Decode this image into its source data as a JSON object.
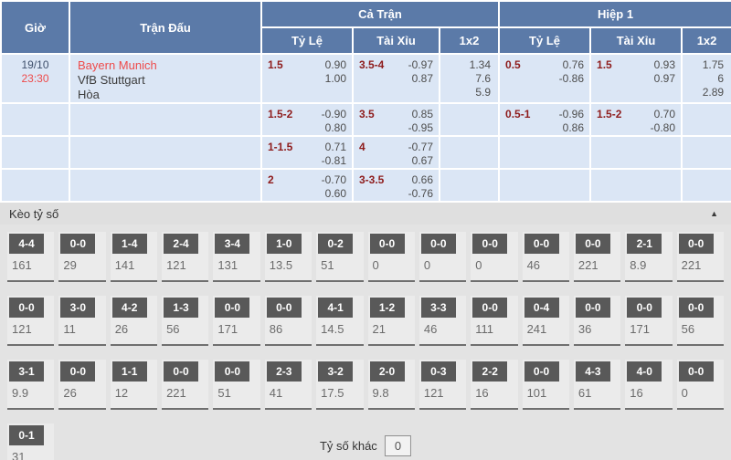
{
  "colors": {
    "header_bg": "#5b7aa8",
    "row_bg": "#dbe6f5",
    "line_maroon": "#8e1c1c",
    "accent_red": "#ee4b4b",
    "badge_bg": "#595959"
  },
  "odds_table": {
    "headers": {
      "time": "Giờ",
      "match": "Trận Đấu",
      "full_match": "Cả Trận",
      "first_half": "Hiệp 1",
      "handicap": "Tỷ Lệ",
      "over_under": "Tài Xỉu",
      "one_x_two": "1x2"
    },
    "rows": [
      {
        "date": "19/10",
        "time": "23:30",
        "home": "Bayern Munich",
        "away": "VfB Stuttgart",
        "draw": "Hòa",
        "ft_hc": {
          "line": "1.5",
          "odds": [
            "0.90",
            "1.00"
          ]
        },
        "ft_ou": {
          "line": "3.5-4",
          "odds": [
            "-0.97",
            "0.87"
          ]
        },
        "ft_1x2": [
          "1.34",
          "7.6",
          "5.9"
        ],
        "h1_hc": {
          "line": "0.5",
          "odds": [
            "0.76",
            "-0.86"
          ]
        },
        "h1_ou": {
          "line": "1.5",
          "odds": [
            "0.93",
            "0.97"
          ]
        },
        "h1_1x2": [
          "1.75",
          "6",
          "2.89"
        ]
      },
      {
        "ft_hc": {
          "line": "1.5-2",
          "odds": [
            "-0.90",
            "0.80"
          ]
        },
        "ft_ou": {
          "line": "3.5",
          "odds": [
            "0.85",
            "-0.95"
          ]
        },
        "h1_hc": {
          "line": "0.5-1",
          "odds": [
            "-0.96",
            "0.86"
          ]
        },
        "h1_ou": {
          "line": "1.5-2",
          "odds": [
            "0.70",
            "-0.80"
          ]
        }
      },
      {
        "ft_hc": {
          "line": "1-1.5",
          "odds": [
            "0.71",
            "-0.81"
          ]
        },
        "ft_ou": {
          "line": "4",
          "odds": [
            "-0.77",
            "0.67"
          ]
        }
      },
      {
        "ft_hc": {
          "line": "2",
          "odds": [
            "-0.70",
            "0.60"
          ]
        },
        "ft_ou": {
          "line": "3-3.5",
          "odds": [
            "0.66",
            "-0.76"
          ]
        }
      }
    ]
  },
  "score_section": {
    "title": "Kèo tỷ số",
    "collapse_icon": "▲",
    "other_label": "Tỷ số khác",
    "other_value": "0",
    "rows": [
      [
        {
          "score": "0-0",
          "odds": "221"
        },
        {
          "score": "2-1",
          "odds": "8.9"
        },
        {
          "score": "0-0",
          "odds": "221"
        },
        {
          "score": "0-0",
          "odds": "46"
        },
        {
          "score": "0-0",
          "odds": "0"
        },
        {
          "score": "0-0",
          "odds": "0"
        },
        {
          "score": "0-0",
          "odds": "0"
        },
        {
          "score": "0-2",
          "odds": "51"
        },
        {
          "score": "1-0",
          "odds": "13.5"
        },
        {
          "score": "3-4",
          "odds": "131"
        },
        {
          "score": "2-4",
          "odds": "121"
        },
        {
          "score": "1-4",
          "odds": "141"
        },
        {
          "score": "0-0",
          "odds": "29"
        },
        {
          "score": "4-4",
          "odds": "161"
        }
      ],
      [
        {
          "score": "0-0",
          "odds": "56"
        },
        {
          "score": "0-0",
          "odds": "171"
        },
        {
          "score": "0-0",
          "odds": "36"
        },
        {
          "score": "0-4",
          "odds": "241"
        },
        {
          "score": "0-0",
          "odds": "111"
        },
        {
          "score": "3-3",
          "odds": "46"
        },
        {
          "score": "1-2",
          "odds": "21"
        },
        {
          "score": "4-1",
          "odds": "14.5"
        },
        {
          "score": "0-0",
          "odds": "86"
        },
        {
          "score": "0-0",
          "odds": "171"
        },
        {
          "score": "1-3",
          "odds": "56"
        },
        {
          "score": "4-2",
          "odds": "26"
        },
        {
          "score": "3-0",
          "odds": "11"
        },
        {
          "score": "0-0",
          "odds": "121"
        }
      ],
      [
        {
          "score": "0-0",
          "odds": "0"
        },
        {
          "score": "4-0",
          "odds": "16"
        },
        {
          "score": "4-3",
          "odds": "61"
        },
        {
          "score": "0-0",
          "odds": "101"
        },
        {
          "score": "2-2",
          "odds": "16"
        },
        {
          "score": "0-3",
          "odds": "121"
        },
        {
          "score": "2-0",
          "odds": "9.8"
        },
        {
          "score": "3-2",
          "odds": "17.5"
        },
        {
          "score": "2-3",
          "odds": "41"
        },
        {
          "score": "0-0",
          "odds": "51"
        },
        {
          "score": "0-0",
          "odds": "221"
        },
        {
          "score": "1-1",
          "odds": "12"
        },
        {
          "score": "0-0",
          "odds": "26"
        },
        {
          "score": "3-1",
          "odds": "9.9"
        }
      ],
      [
        {
          "score": "0-1",
          "odds": "31"
        }
      ]
    ]
  }
}
